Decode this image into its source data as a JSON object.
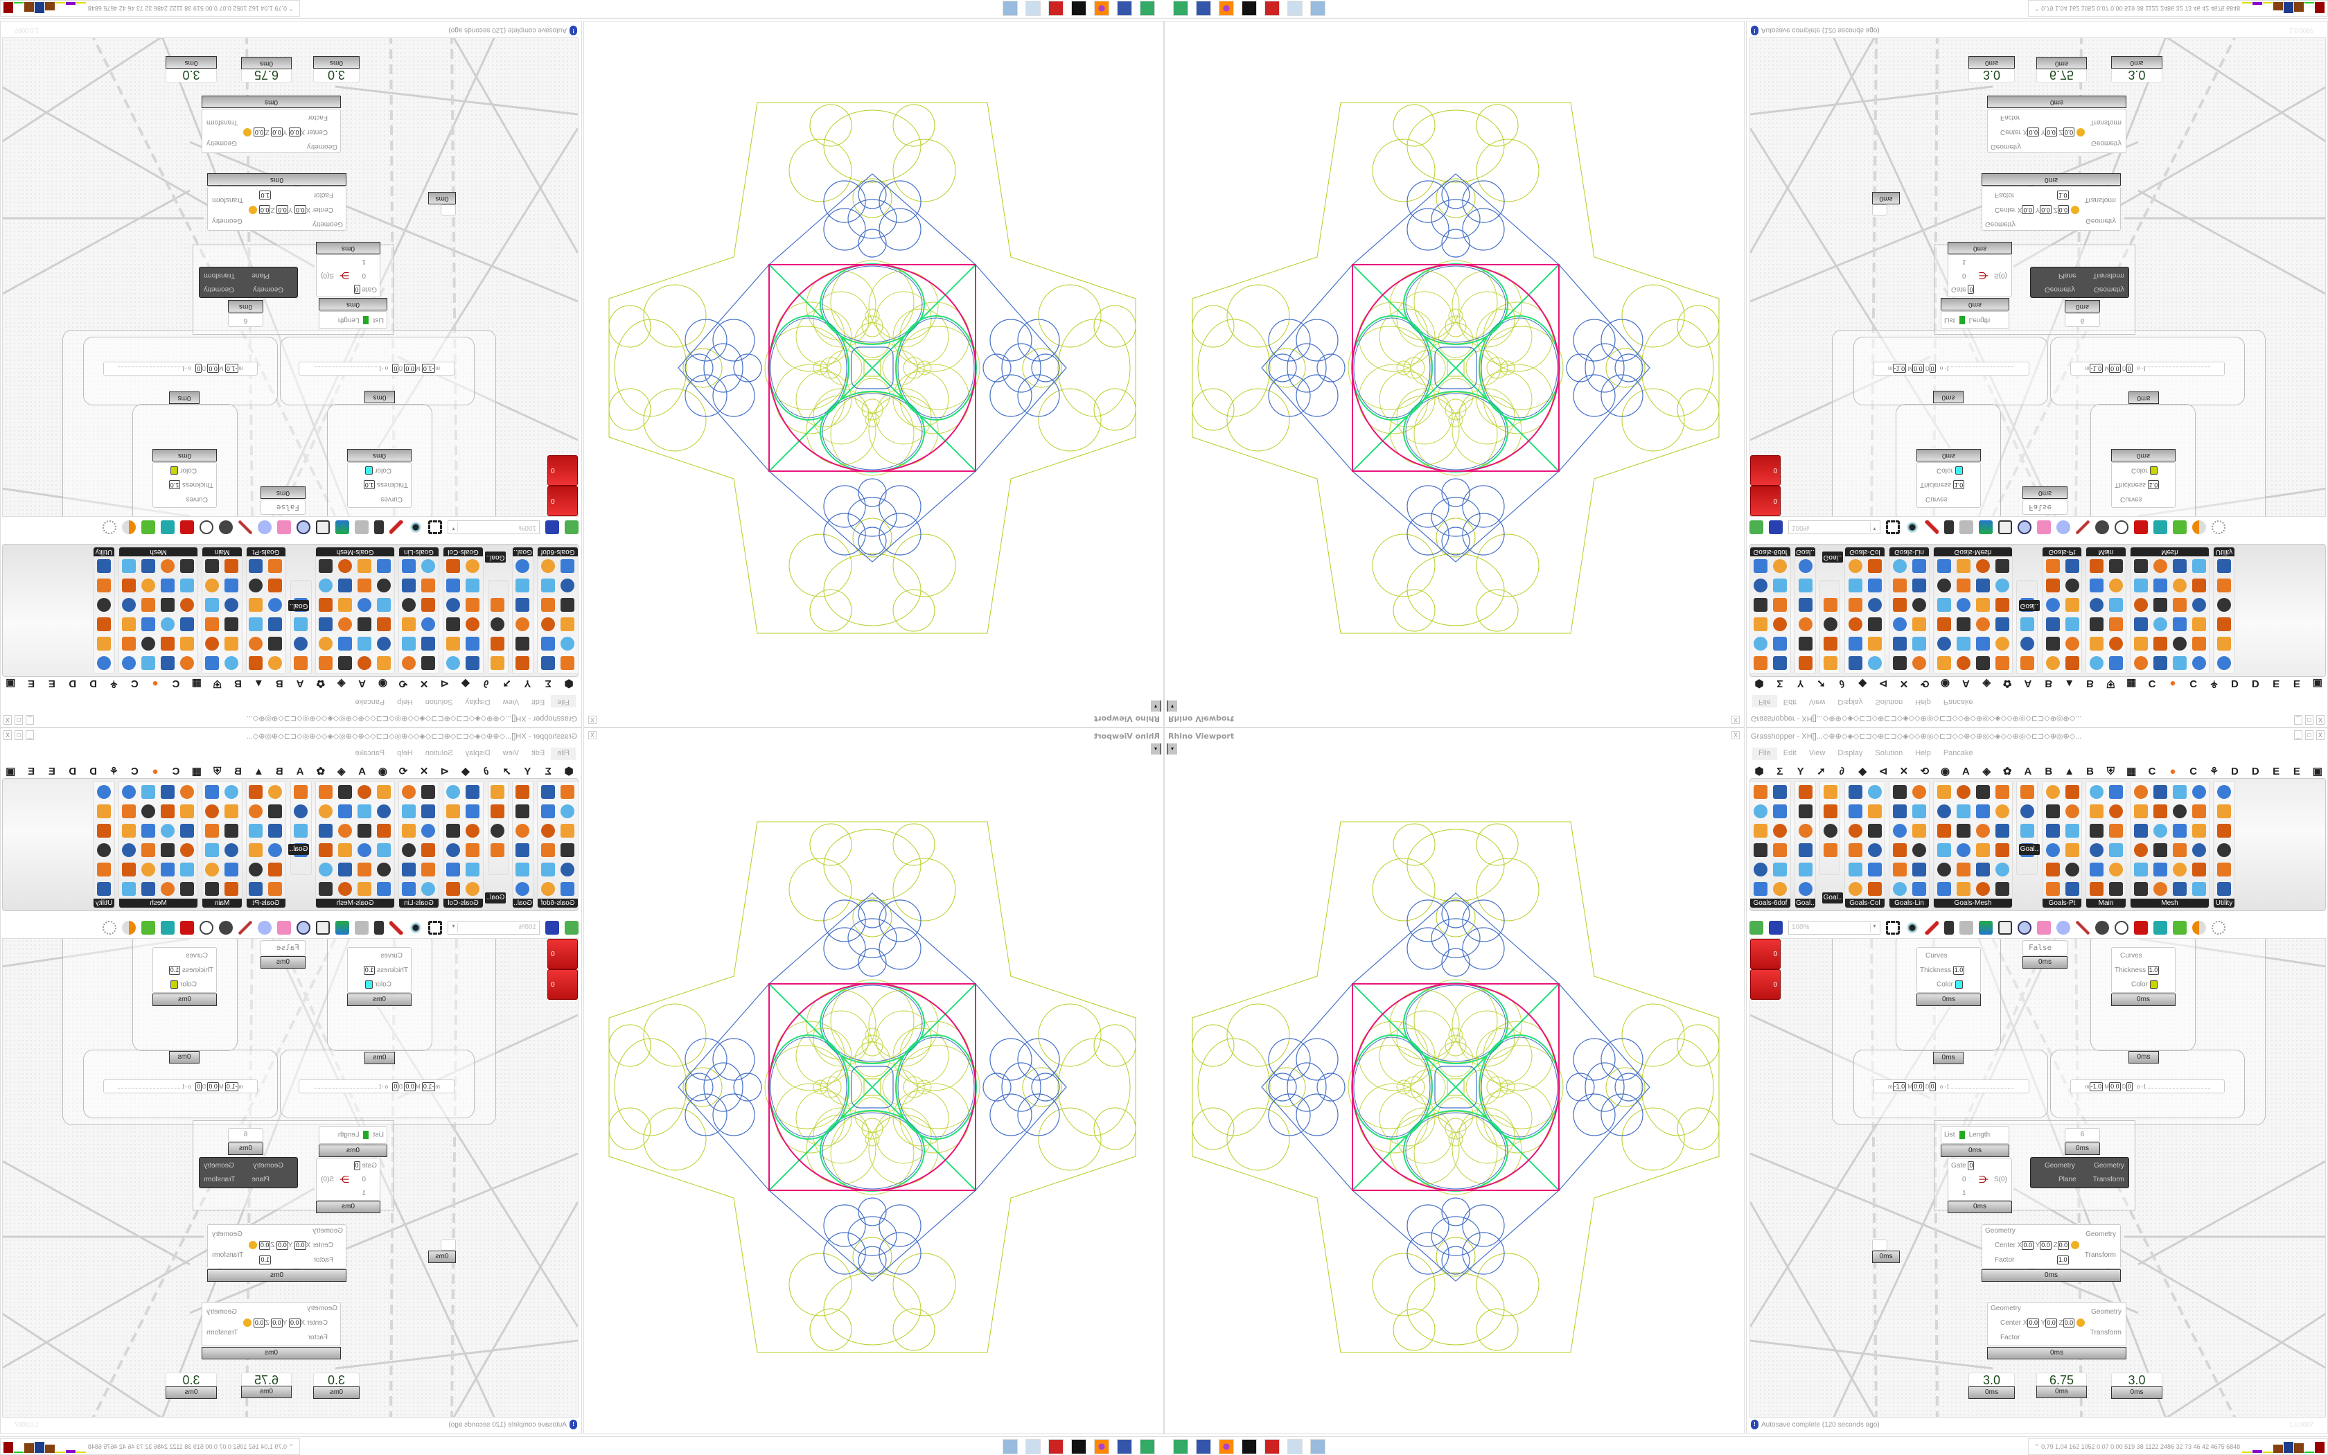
{
  "viewport": {
    "title": "Rhino Viewport",
    "close": "X",
    "dropdown": "▾"
  },
  "grasshopper": {
    "title": "Grasshopper - XH[]...◇⊕⊕◇◈◇⊏⊐◇⊕⊏⊐◇◈◇◇⊕◎◇⊏⊐◇◇⊕◇⊕◎◇◈◇◇⊕◎◇⊏⊐◇⊕◎⊕◇...",
    "window_buttons": [
      "_",
      "□",
      "X"
    ],
    "menu": [
      "File",
      "Edit",
      "View",
      "Display",
      "Solution",
      "Help",
      "Pancake"
    ],
    "category_tabs": [
      "⬢",
      "Σ",
      "Y",
      "➚",
      "∂",
      "◆",
      "⊲",
      "✕",
      "⟲",
      "◉",
      "A",
      "◈",
      "✿",
      "A",
      "B",
      "▲",
      "B",
      "⛨",
      "▦",
      "C",
      "●",
      "C",
      "⚘",
      "D",
      "D",
      "E",
      "E",
      "▣"
    ],
    "palette_panels": [
      "Goals-6dof",
      "Goal..",
      "",
      "Goals-Col",
      "Goals-Lin",
      "Goals-Mesh",
      "",
      "Goals-Pt",
      "Main",
      "Mesh",
      "Utility"
    ],
    "palette_overlays": [
      "Goal..",
      "Goal.."
    ],
    "toolbar": {
      "zoom": "100%"
    },
    "canvas": {
      "previews": [
        {
          "curves": "Curves",
          "thickness_label": "Thickness",
          "thickness": "1.0",
          "color_label": "Color",
          "color": "#3ef2f2",
          "time": "0ms"
        },
        {
          "curves": "Curves",
          "thickness_label": "Thickness",
          "thickness": "1.0",
          "color_label": "Color",
          "color": "#c8d400",
          "time": "0ms"
        }
      ],
      "toggle": {
        "value": "False",
        "time": "0ms"
      },
      "red_components": [
        {
          "output": "0",
          "time": "0ms"
        },
        {
          "output": "0",
          "time": "0ms"
        }
      ],
      "sliders": [
        {
          "m": "m",
          "min": "-1.0",
          "M": "M",
          "mid": "0.0",
          "D": "D",
          "dec": "0",
          "value": "-1"
        },
        {
          "m": "m",
          "min": "-1.0",
          "M": "M",
          "mid": "0.0",
          "D": "D",
          "dec": "0",
          "value": "-1"
        }
      ],
      "list_length": {
        "input": "List",
        "output": "Length",
        "time": "0ms"
      },
      "panel": {
        "value": "6",
        "time": "0ms"
      },
      "gate": {
        "gate_label": "Gate",
        "gate_value": "0",
        "in0": "0",
        "in1": "1",
        "output": "S(0)",
        "time": "0ms"
      },
      "orient": {
        "in_geometry": "Geometry",
        "in_plane": "Plane",
        "out_geometry": "Geometry",
        "out_transform": "Transform"
      },
      "small_component": {
        "time": "0ms"
      },
      "scales": [
        {
          "geometry": "Geometry",
          "center": "Center",
          "x": "0.0",
          "y": "0.0",
          "z": "0.0",
          "factor_label": "Factor",
          "factor": "1.0",
          "out_geometry": "Geometry",
          "out_transform": "Transform",
          "time": "0ms"
        },
        {
          "geometry": "Geometry",
          "center": "Center",
          "x": "0.0",
          "y": "0.0",
          "z": "0.0",
          "factor_label": "Factor",
          "out_geometry": "Geometry",
          "out_transform": "Transform",
          "time": "0ms"
        }
      ],
      "numbers": [
        {
          "value": "3.0",
          "time": "0ms"
        },
        {
          "value": "6.75",
          "time": "0ms"
        },
        {
          "value": "3.0",
          "time": "0ms"
        }
      ]
    },
    "status": "Autosave complete (120 seconds ago)",
    "version": "1.0.0007"
  },
  "taskbar": {
    "apps": [
      "rhino-icon",
      "save-64-icon",
      "firefox-icon",
      "inkscape-icon",
      "gear-app-icon",
      "notepad-icon",
      "calculator-icon"
    ],
    "stats": "0.79 1.04 162 1052 0.07 0.00 519 38 1122 2486 32 73 46 42 4675 6848"
  },
  "colors": {
    "magenta": "#e8147a",
    "green": "#22e07a",
    "blue": "#4470c8",
    "yellow": "#b8cc20"
  }
}
